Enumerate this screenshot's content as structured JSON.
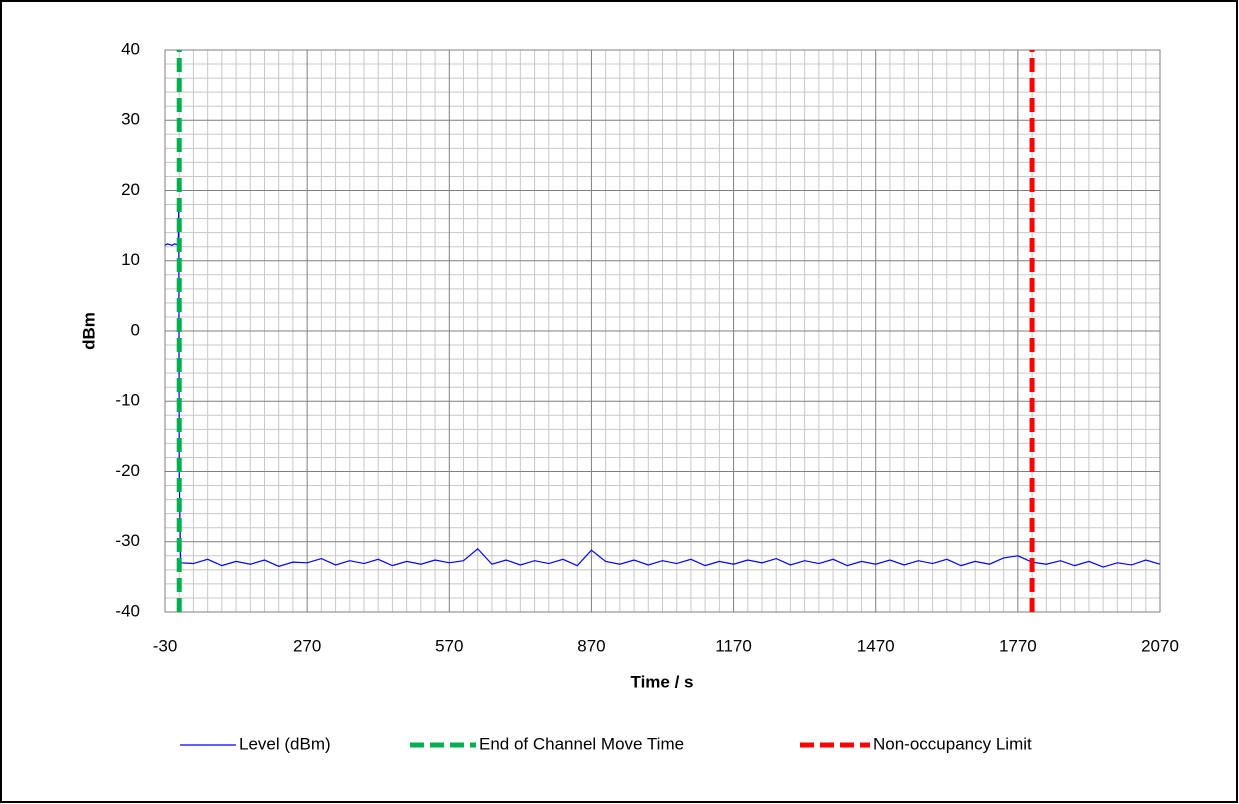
{
  "chart_data": {
    "type": "line",
    "xlabel": "Time / s",
    "ylabel": "dBm",
    "xlim": [
      -30,
      2070
    ],
    "xticks": [
      -30,
      270,
      570,
      870,
      1170,
      1470,
      1770,
      2070
    ],
    "ylim": [
      -40,
      40
    ],
    "yticks": [
      -40,
      -30,
      -20,
      -10,
      0,
      10,
      20,
      30,
      40
    ],
    "grid": true,
    "legend": "bottom",
    "series": [
      {
        "name": "Level (dBm)",
        "color": "#0000ff",
        "line_style": "solid",
        "x": [
          -30,
          -25,
          -20,
          -15,
          -10,
          -5,
          -2,
          -1,
          0,
          3,
          30,
          60,
          90,
          120,
          150,
          180,
          210,
          240,
          270,
          300,
          330,
          360,
          390,
          420,
          450,
          480,
          510,
          540,
          570,
          600,
          630,
          660,
          690,
          720,
          750,
          780,
          810,
          840,
          870,
          900,
          930,
          960,
          990,
          1020,
          1050,
          1080,
          1110,
          1140,
          1170,
          1200,
          1230,
          1260,
          1290,
          1320,
          1350,
          1380,
          1410,
          1440,
          1470,
          1500,
          1530,
          1560,
          1590,
          1620,
          1650,
          1680,
          1710,
          1740,
          1770,
          1800,
          1830,
          1860,
          1890,
          1920,
          1950,
          1980,
          2010,
          2040,
          2070
        ],
        "values": [
          12.2,
          12.4,
          12.3,
          12.2,
          12.4,
          12.3,
          12.2,
          18.5,
          -20,
          -33.0,
          -33.1,
          -32.5,
          -33.4,
          -32.8,
          -33.2,
          -32.6,
          -33.5,
          -32.9,
          -33.0,
          -32.4,
          -33.3,
          -32.7,
          -33.1,
          -32.5,
          -33.4,
          -32.8,
          -33.2,
          -32.6,
          -33.0,
          -32.7,
          -31.0,
          -33.2,
          -32.6,
          -33.3,
          -32.7,
          -33.1,
          -32.5,
          -33.4,
          -31.2,
          -32.8,
          -33.2,
          -32.6,
          -33.3,
          -32.7,
          -33.1,
          -32.5,
          -33.4,
          -32.8,
          -33.2,
          -32.6,
          -33.0,
          -32.4,
          -33.3,
          -32.7,
          -33.1,
          -32.5,
          -33.4,
          -32.8,
          -33.2,
          -32.6,
          -33.3,
          -32.7,
          -33.1,
          -32.5,
          -33.4,
          -32.8,
          -33.2,
          -32.3,
          -32.0,
          -32.9,
          -33.2,
          -32.7,
          -33.4,
          -32.8,
          -33.6,
          -33.0,
          -33.3,
          -32.6,
          -33.2
        ]
      },
      {
        "name": "End of Channel Move Time",
        "color": "#00b050",
        "line_style": "dashed",
        "x": [
          0,
          0
        ],
        "values": [
          -40,
          40
        ]
      },
      {
        "name": "Non-occupancy Limit",
        "color": "#ff0000",
        "line_style": "dashed",
        "x": [
          1800,
          1800
        ],
        "values": [
          -40,
          40
        ]
      }
    ]
  }
}
